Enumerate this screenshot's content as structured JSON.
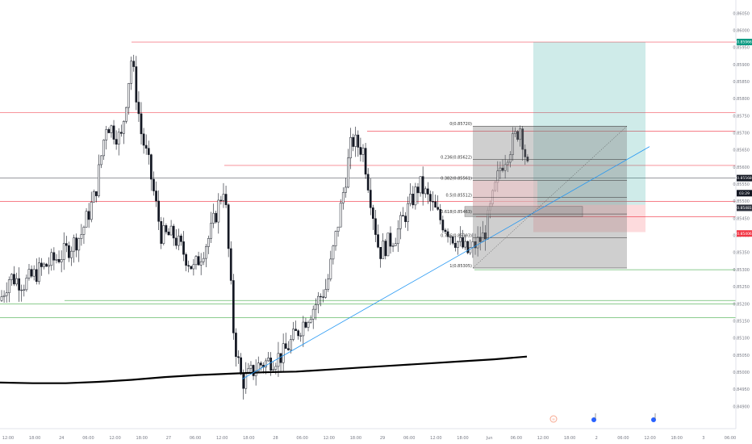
{
  "chart_data": {
    "type": "candlestick",
    "x_tick_labels": [
      "12:00",
      "18:00",
      "24",
      "06:00",
      "12:00",
      "18:00",
      "27",
      "06:00",
      "12:00",
      "18:00",
      "28",
      "06:00",
      "12:00",
      "18:00",
      "29",
      "06:00",
      "12:00",
      "18:00",
      "Jun",
      "06:00",
      "12:00",
      "18:00",
      "2",
      "06:00",
      "12:00",
      "18:00",
      "3",
      "06:00"
    ],
    "y_tick_labels": [
      "0.86050",
      "0.86000",
      "0.85950",
      "0.85900",
      "0.85850",
      "0.85800",
      "0.85750",
      "0.85700",
      "0.85650",
      "0.85600",
      "0.85550",
      "0.85500",
      "0.85450",
      "0.85400",
      "0.85350",
      "0.85300",
      "0.85250",
      "0.85200",
      "0.85150",
      "0.85100",
      "0.85050",
      "0.85000",
      "0.84950",
      "0.84900"
    ],
    "y_range": [
      0.8488,
      0.8607
    ],
    "price_tags": [
      {
        "label": "0.85966",
        "value": 0.85966,
        "color": "#089981"
      },
      {
        "label": "0.85568",
        "value": 0.85568,
        "color": "#131722"
      },
      {
        "label": "03:29",
        "value": 0.85538,
        "color": "#131722"
      },
      {
        "label": "0.85481",
        "value": 0.85481,
        "color": "#2a2e39"
      },
      {
        "label": "0.85406",
        "value": 0.85406,
        "color": "#f23645"
      }
    ],
    "fib_levels": [
      {
        "label": "0(0.85720)",
        "value": 0.8572
      },
      {
        "label": "0.236(0.85622)",
        "value": 0.85622
      },
      {
        "label": "0.382(0.85561)",
        "value": 0.85561
      },
      {
        "label": "0.5(0.85512)",
        "value": 0.85512
      },
      {
        "label": "0.618(0.85463)",
        "value": 0.85463
      },
      {
        "label": "0.786(0.85393)",
        "value": 0.85393
      },
      {
        "label": "1(0.85305)",
        "value": 0.85305
      }
    ],
    "horizontal_levels": [
      {
        "value": 0.85966,
        "color": "red"
      },
      {
        "value": 0.8576,
        "color": "red"
      },
      {
        "value": 0.85705,
        "color": "red"
      },
      {
        "value": 0.85605,
        "color": "red"
      },
      {
        "value": 0.855,
        "color": "red"
      },
      {
        "value": 0.85455,
        "color": "red"
      },
      {
        "value": 0.853,
        "color": "green"
      },
      {
        "value": 0.8521,
        "color": "green"
      },
      {
        "value": 0.852,
        "color": "green"
      },
      {
        "value": 0.8516,
        "color": "green"
      }
    ],
    "price_open": 0.8506,
    "price_drift": 3e-05,
    "price_swing": 0.0028,
    "candles_count": 212,
    "moving_average": [
      0.8497,
      0.84968,
      0.84968,
      0.84972,
      0.84978,
      0.84986,
      0.84992,
      0.84996,
      0.85,
      0.85002,
      0.85008,
      0.85014,
      0.8502,
      0.85026,
      0.85032,
      0.85038,
      0.85046
    ]
  }
}
